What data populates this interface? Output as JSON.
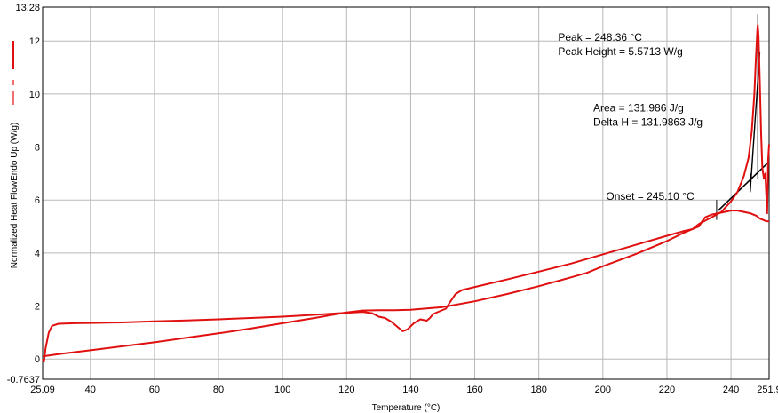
{
  "chart_data": {
    "type": "line",
    "xlabel": "Temperature (°C)",
    "ylabel": "Normalized Heat FlowEndo Up (W/g)",
    "xlim": [
      25.09,
      251.9
    ],
    "ylim": [
      -0.7637,
      13.28
    ],
    "x_ticks": [
      {
        "value": 25.09,
        "label": "25.09"
      },
      {
        "value": 40,
        "label": "40"
      },
      {
        "value": 60,
        "label": "60"
      },
      {
        "value": 80,
        "label": "80"
      },
      {
        "value": 100,
        "label": "100"
      },
      {
        "value": 120,
        "label": "120"
      },
      {
        "value": 140,
        "label": "140"
      },
      {
        "value": 160,
        "label": "160"
      },
      {
        "value": 180,
        "label": "180"
      },
      {
        "value": 200,
        "label": "200"
      },
      {
        "value": 220,
        "label": "220"
      },
      {
        "value": 240,
        "label": "240"
      },
      {
        "value": 251.9,
        "label": "251.9"
      }
    ],
    "y_ticks": [
      {
        "value": -0.7637,
        "label": "-0.7637"
      },
      {
        "value": 0,
        "label": "0"
      },
      {
        "value": 2,
        "label": "2"
      },
      {
        "value": 4,
        "label": "4"
      },
      {
        "value": 6,
        "label": "6"
      },
      {
        "value": 8,
        "label": "8"
      },
      {
        "value": 10,
        "label": "10"
      },
      {
        "value": 12,
        "label": "12"
      },
      {
        "value": 13.28,
        "label": "13.28"
      }
    ],
    "grid": true,
    "series": [
      {
        "color": "#e01010",
        "points": [
          [
            25.09,
            0.0
          ],
          [
            25.5,
            -0.1
          ],
          [
            26.0,
            0.4
          ],
          [
            27.0,
            1.0
          ],
          [
            28.0,
            1.25
          ],
          [
            30.0,
            1.33
          ],
          [
            35.0,
            1.35
          ],
          [
            40.0,
            1.36
          ],
          [
            50.0,
            1.38
          ],
          [
            60.0,
            1.42
          ],
          [
            70.0,
            1.46
          ],
          [
            80.0,
            1.5
          ],
          [
            90.0,
            1.55
          ],
          [
            100.0,
            1.6
          ],
          [
            110.0,
            1.67
          ],
          [
            118.0,
            1.73
          ],
          [
            122.0,
            1.76
          ],
          [
            125.0,
            1.78
          ],
          [
            128.0,
            1.73
          ],
          [
            130.0,
            1.6
          ],
          [
            132.0,
            1.55
          ],
          [
            134.0,
            1.4
          ],
          [
            136.0,
            1.2
          ],
          [
            137.5,
            1.05
          ],
          [
            139.0,
            1.12
          ],
          [
            141.0,
            1.35
          ],
          [
            143.0,
            1.5
          ],
          [
            145.0,
            1.45
          ],
          [
            146.0,
            1.55
          ],
          [
            147.0,
            1.7
          ],
          [
            149.0,
            1.8
          ],
          [
            151.0,
            1.9
          ],
          [
            152.0,
            2.1
          ],
          [
            154.0,
            2.45
          ],
          [
            156.0,
            2.6
          ],
          [
            160.0,
            2.72
          ],
          [
            170.0,
            3.0
          ],
          [
            180.0,
            3.3
          ],
          [
            190.0,
            3.6
          ],
          [
            200.0,
            3.95
          ],
          [
            210.0,
            4.3
          ],
          [
            220.0,
            4.65
          ],
          [
            225.0,
            4.82
          ],
          [
            228.0,
            4.9
          ],
          [
            230.0,
            5.0
          ],
          [
            231.0,
            5.2
          ],
          [
            232.0,
            5.35
          ],
          [
            234.0,
            5.45
          ],
          [
            236.0,
            5.5
          ],
          [
            238.0,
            5.55
          ],
          [
            240.0,
            5.6
          ],
          [
            242.0,
            5.6
          ],
          [
            244.0,
            5.55
          ],
          [
            246.0,
            5.5
          ],
          [
            248.0,
            5.4
          ],
          [
            249.0,
            5.3
          ],
          [
            250.0,
            5.25
          ],
          [
            251.0,
            5.2
          ],
          [
            251.9,
            5.2
          ]
        ]
      },
      {
        "color": "#e01010",
        "points": [
          [
            25.09,
            0.1
          ],
          [
            30.0,
            0.18
          ],
          [
            40.0,
            0.33
          ],
          [
            50.0,
            0.48
          ],
          [
            60.0,
            0.63
          ],
          [
            70.0,
            0.8
          ],
          [
            80.0,
            0.97
          ],
          [
            90.0,
            1.15
          ],
          [
            100.0,
            1.35
          ],
          [
            110.0,
            1.55
          ],
          [
            120.0,
            1.76
          ],
          [
            125.0,
            1.83
          ],
          [
            130.0,
            1.84
          ],
          [
            135.0,
            1.84
          ],
          [
            140.0,
            1.86
          ],
          [
            150.0,
            1.96
          ],
          [
            160.0,
            2.18
          ],
          [
            170.0,
            2.45
          ],
          [
            180.0,
            2.75
          ],
          [
            190.0,
            3.08
          ],
          [
            195.0,
            3.25
          ],
          [
            200.0,
            3.5
          ],
          [
            210.0,
            3.95
          ],
          [
            220.0,
            4.45
          ],
          [
            225.0,
            4.75
          ],
          [
            228.0,
            4.9
          ],
          [
            230.0,
            5.1
          ],
          [
            234.0,
            5.35
          ],
          [
            237.0,
            5.55
          ],
          [
            240.0,
            5.95
          ],
          [
            242.0,
            6.3
          ],
          [
            244.0,
            6.9
          ],
          [
            245.5,
            7.6
          ],
          [
            246.5,
            8.6
          ],
          [
            247.3,
            10.0
          ],
          [
            247.8,
            11.4
          ],
          [
            248.2,
            12.4
          ],
          [
            248.36,
            12.6
          ],
          [
            248.6,
            12.2
          ],
          [
            249.0,
            10.5
          ],
          [
            249.4,
            8.5
          ],
          [
            249.8,
            7.2
          ],
          [
            250.3,
            6.8
          ],
          [
            250.7,
            7.0
          ],
          [
            251.0,
            6.2
          ],
          [
            251.3,
            5.5
          ],
          [
            251.6,
            7.5
          ],
          [
            251.9,
            8.1
          ]
        ]
      }
    ],
    "baseline": {
      "color": "#000000",
      "points": [
        [
          236.0,
          5.6
        ],
        [
          251.9,
          7.45
        ]
      ]
    },
    "onset_tangent": {
      "color": "#000000",
      "points": [
        [
          246.0,
          6.3
        ],
        [
          249.0,
          11.6
        ]
      ]
    },
    "peak_marker": {
      "color": "#000000",
      "points": [
        [
          248.36,
          6.8
        ],
        [
          248.36,
          13.0
        ]
      ]
    },
    "tick_marks": [
      {
        "color": "#000000",
        "points": [
          [
            235.5,
            5.25
          ],
          [
            235.5,
            6.0
          ]
        ]
      },
      {
        "color": "#000000",
        "points": [
          [
            246.1,
            6.4
          ],
          [
            246.1,
            7.0
          ]
        ]
      }
    ],
    "annotations": [
      {
        "lines": [
          "Peak = 248.36 °C",
          "Peak Height = 5.5713 W/g"
        ],
        "x": 186.0,
        "y": 12.0
      },
      {
        "lines": [
          "Area = 131.986 J/g",
          "Delta H = 131.9863 J/g"
        ],
        "x": 197.0,
        "y": 9.35
      },
      {
        "lines": [
          "Onset = 245.10 °C"
        ],
        "x": 201.0,
        "y": 6.0
      }
    ]
  }
}
